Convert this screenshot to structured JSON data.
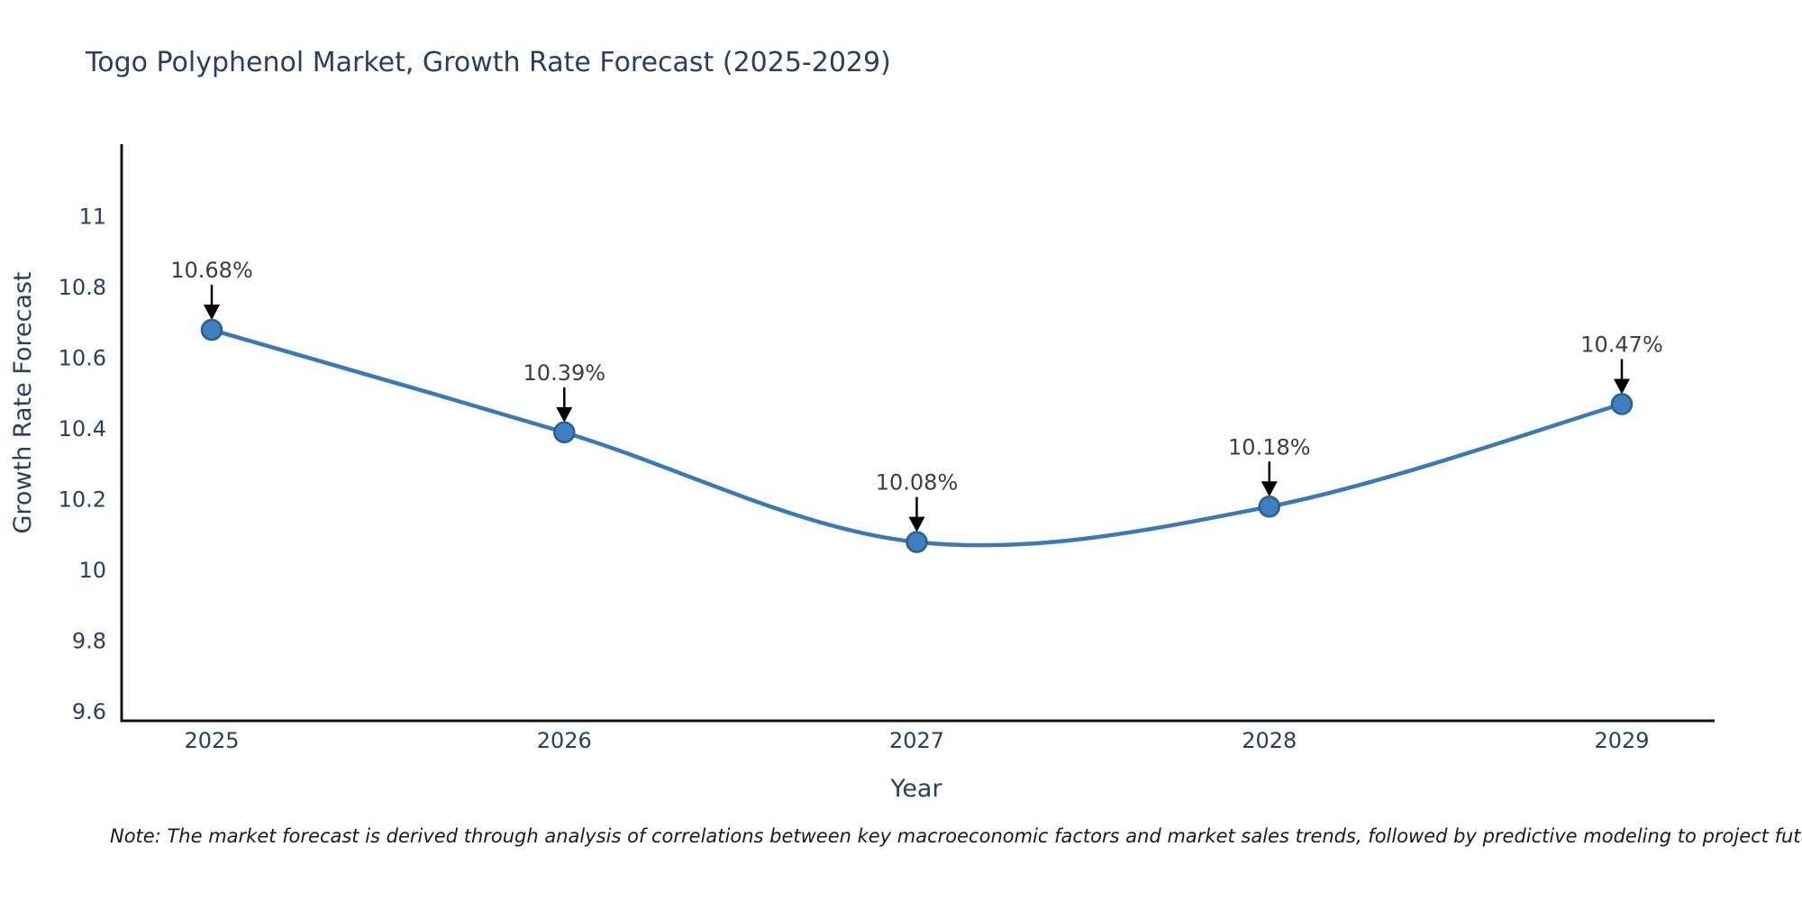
{
  "title": "Togo Polyphenol Market, Growth Rate Forecast (2025-2029)",
  "note": "Note: The market forecast is derived through analysis of correlations between key macroeconomic factors and market sales trends, followed by predictive modeling to project future sal",
  "chart_data": {
    "type": "line",
    "title": "Togo Polyphenol Market, Growth Rate Forecast (2025-2029)",
    "xlabel": "Year",
    "ylabel": "Growth Rate Forecast",
    "x": [
      2025,
      2026,
      2027,
      2028,
      2029
    ],
    "values": [
      10.68,
      10.39,
      10.08,
      10.18,
      10.47
    ],
    "point_labels": [
      "10.68%",
      "10.39%",
      "10.08%",
      "10.18%",
      "10.47%"
    ],
    "unit": "%",
    "line_shape": "spline",
    "grid": false,
    "legend_position": "none",
    "ylim": [
      9.57,
      11.21
    ],
    "yticks": [
      9.6,
      9.8,
      10,
      10.2,
      10.4,
      10.6,
      10.8,
      11
    ],
    "xticks": [
      "2025",
      "2026",
      "2027",
      "2028",
      "2029"
    ],
    "colors": {
      "line": "#3a79b8",
      "marker_fill": "#3f7fbf",
      "marker_edge": "#2a5f8f",
      "arrow": "#000000",
      "axis_line": "#111111",
      "title_text": "#2a3f5f",
      "annotation_text": "#3d3d3d"
    }
  }
}
